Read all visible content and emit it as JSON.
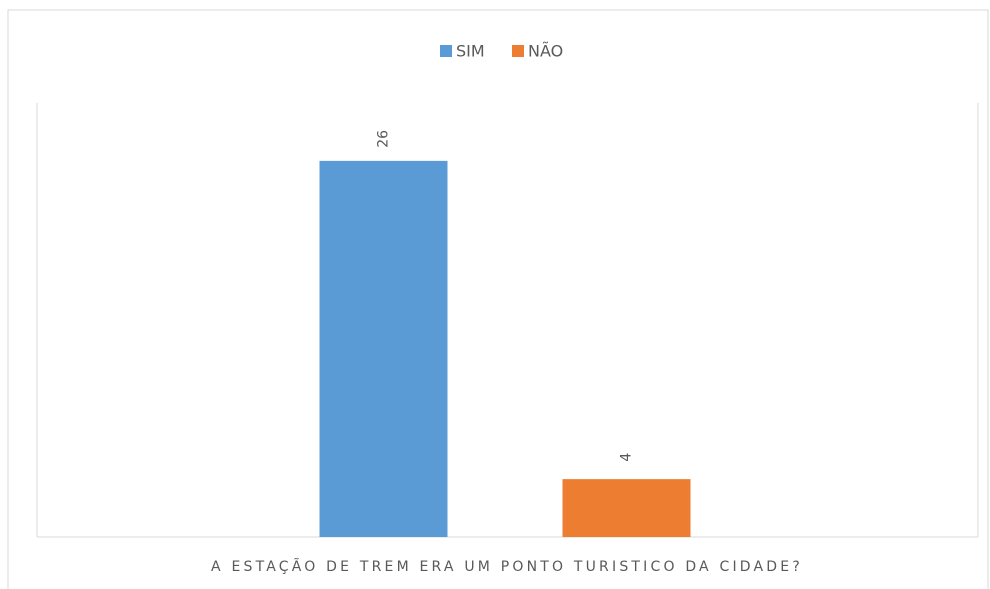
{
  "chart_data": {
    "type": "bar",
    "categories": [
      "A ESTAÇÃO DE TREM ERA UM PONTO TURISTICO DA CIDADE?"
    ],
    "series": [
      {
        "name": "SIM",
        "color": "#5b9bd5",
        "values": [
          26
        ]
      },
      {
        "name": "NÃO",
        "color": "#ed7d31",
        "values": [
          4
        ]
      }
    ],
    "ylim": [
      0,
      30
    ],
    "legend": "top",
    "data_labels": true,
    "grid": false
  }
}
